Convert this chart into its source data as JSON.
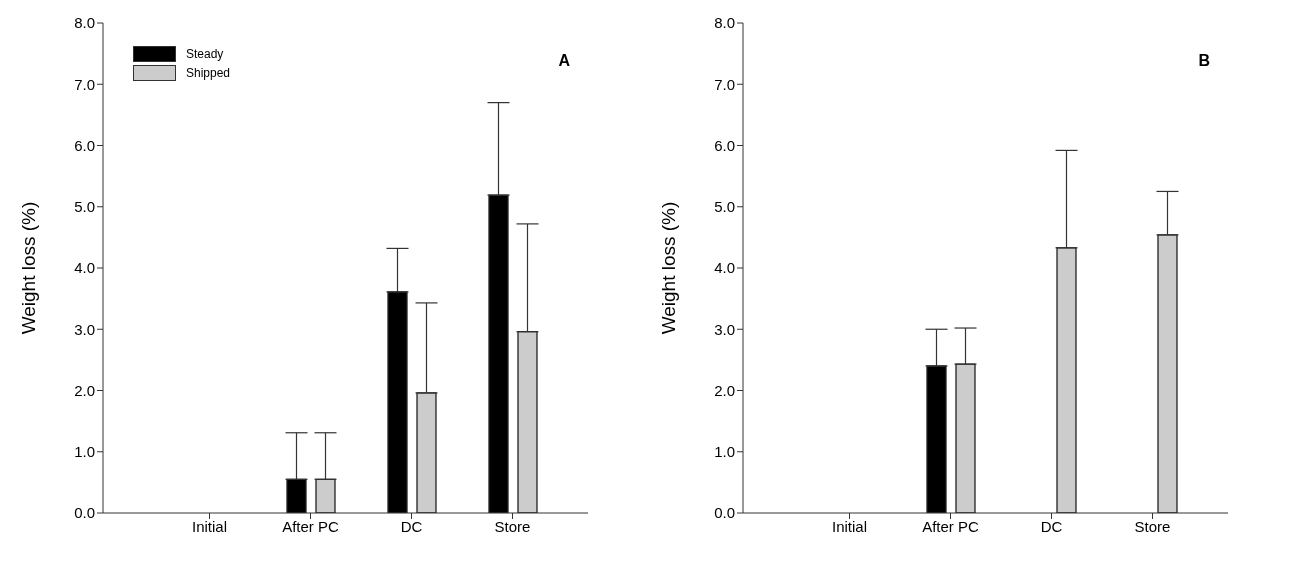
{
  "chart_data": [
    {
      "type": "bar",
      "ylabel": "Weight loss (%)",
      "categories": [
        "Initial",
        "After PC",
        "DC",
        "Store"
      ],
      "series": [
        {
          "name": "Steady",
          "color": "#000000",
          "values": [
            null,
            0.55,
            3.61,
            5.19
          ],
          "errors": [
            null,
            [
              0.55,
              1.31
            ],
            [
              3.61,
              4.32
            ],
            [
              5.19,
              6.7
            ]
          ]
        },
        {
          "name": "Shipped",
          "color": "#cccccc",
          "values": [
            null,
            0.55,
            1.96,
            2.96
          ],
          "errors": [
            null,
            [
              0.55,
              1.31
            ],
            [
              1.96,
              3.43
            ],
            [
              2.96,
              4.72
            ]
          ]
        }
      ],
      "ylim": [
        0,
        8
      ],
      "yticks": [
        {
          "value": 0,
          "label": "0.0"
        },
        {
          "value": 1,
          "label": "1.0"
        },
        {
          "value": 2,
          "label": "2.0"
        },
        {
          "value": 3,
          "label": "3.0"
        },
        {
          "value": 4,
          "label": "4.0"
        },
        {
          "value": 5,
          "label": "5.0"
        },
        {
          "value": 6,
          "label": "6.0"
        },
        {
          "value": 7,
          "label": "7.0"
        },
        {
          "value": 8,
          "label": "8.0"
        }
      ],
      "annotations": [
        "A"
      ],
      "legend": "top left"
    },
    {
      "type": "bar",
      "ylabel": "Weight loss (%)",
      "categories": [
        "Initial",
        "After PC",
        "DC",
        "Store"
      ],
      "series": [
        {
          "color": "#000000",
          "values": [
            null,
            2.4,
            null,
            null
          ],
          "errors": [
            null,
            [
              2.4,
              3.0
            ],
            null,
            null
          ]
        },
        {
          "color": "#cccccc",
          "values": [
            null,
            2.43,
            4.33,
            4.54
          ],
          "errors": [
            null,
            [
              2.43,
              3.02
            ],
            [
              4.33,
              5.92
            ],
            [
              4.54,
              5.25
            ]
          ]
        }
      ],
      "ylim": [
        0,
        8
      ],
      "yticks": [
        {
          "value": 0,
          "label": "0.0"
        },
        {
          "value": 1,
          "label": "1.0"
        },
        {
          "value": 2,
          "label": "2.0"
        },
        {
          "value": 3,
          "label": "3.0"
        },
        {
          "value": 4,
          "label": "4.0"
        },
        {
          "value": 5,
          "label": "5.0"
        },
        {
          "value": 6,
          "label": "6.0"
        },
        {
          "value": 7,
          "label": "7.0"
        },
        {
          "value": 8,
          "label": "8.0"
        }
      ],
      "annotations": [
        "B"
      ]
    }
  ]
}
